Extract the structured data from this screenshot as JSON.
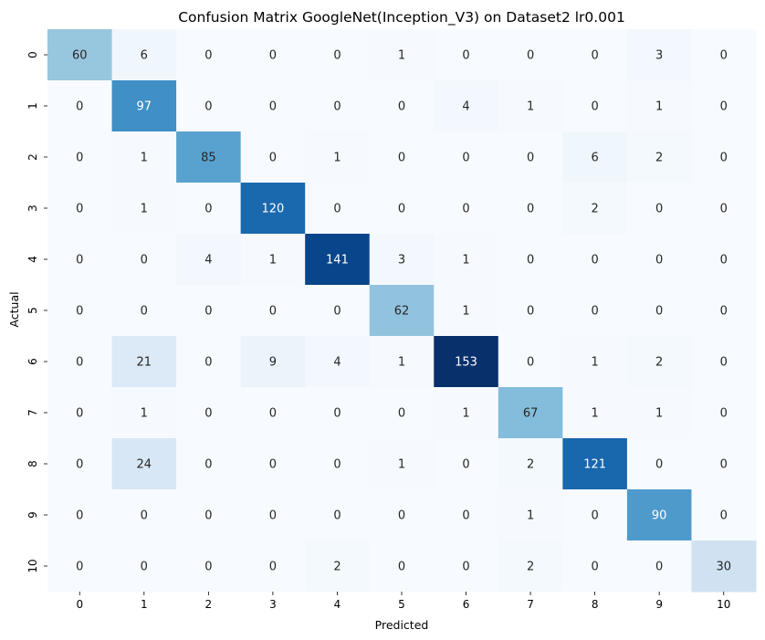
{
  "chart_data": {
    "type": "heatmap",
    "title": "Confusion Matrix GoogleNet(Inception_V3) on Dataset2 lr0.001",
    "xlabel": "Predicted",
    "ylabel": "Actual",
    "x_categories": [
      "0",
      "1",
      "2",
      "3",
      "4",
      "5",
      "6",
      "7",
      "8",
      "9",
      "10"
    ],
    "y_categories": [
      "0",
      "1",
      "2",
      "3",
      "4",
      "5",
      "6",
      "7",
      "8",
      "9",
      "10"
    ],
    "colormap": "Blues",
    "value_range": [
      0,
      153
    ],
    "colorbar": false,
    "values": [
      [
        60,
        6,
        0,
        0,
        0,
        1,
        0,
        0,
        0,
        3,
        0
      ],
      [
        0,
        97,
        0,
        0,
        0,
        0,
        4,
        1,
        0,
        1,
        0
      ],
      [
        0,
        1,
        85,
        0,
        1,
        0,
        0,
        0,
        6,
        2,
        0
      ],
      [
        0,
        1,
        0,
        120,
        0,
        0,
        0,
        0,
        2,
        0,
        0
      ],
      [
        0,
        0,
        4,
        1,
        141,
        3,
        1,
        0,
        0,
        0,
        0
      ],
      [
        0,
        0,
        0,
        0,
        0,
        62,
        1,
        0,
        0,
        0,
        0
      ],
      [
        0,
        21,
        0,
        9,
        4,
        1,
        153,
        0,
        1,
        2,
        0
      ],
      [
        0,
        1,
        0,
        0,
        0,
        0,
        1,
        67,
        1,
        1,
        0
      ],
      [
        0,
        24,
        0,
        0,
        0,
        1,
        0,
        2,
        121,
        0,
        0
      ],
      [
        0,
        0,
        0,
        0,
        0,
        0,
        0,
        1,
        0,
        90,
        0
      ],
      [
        0,
        0,
        0,
        0,
        2,
        0,
        0,
        2,
        0,
        0,
        30
      ]
    ]
  }
}
